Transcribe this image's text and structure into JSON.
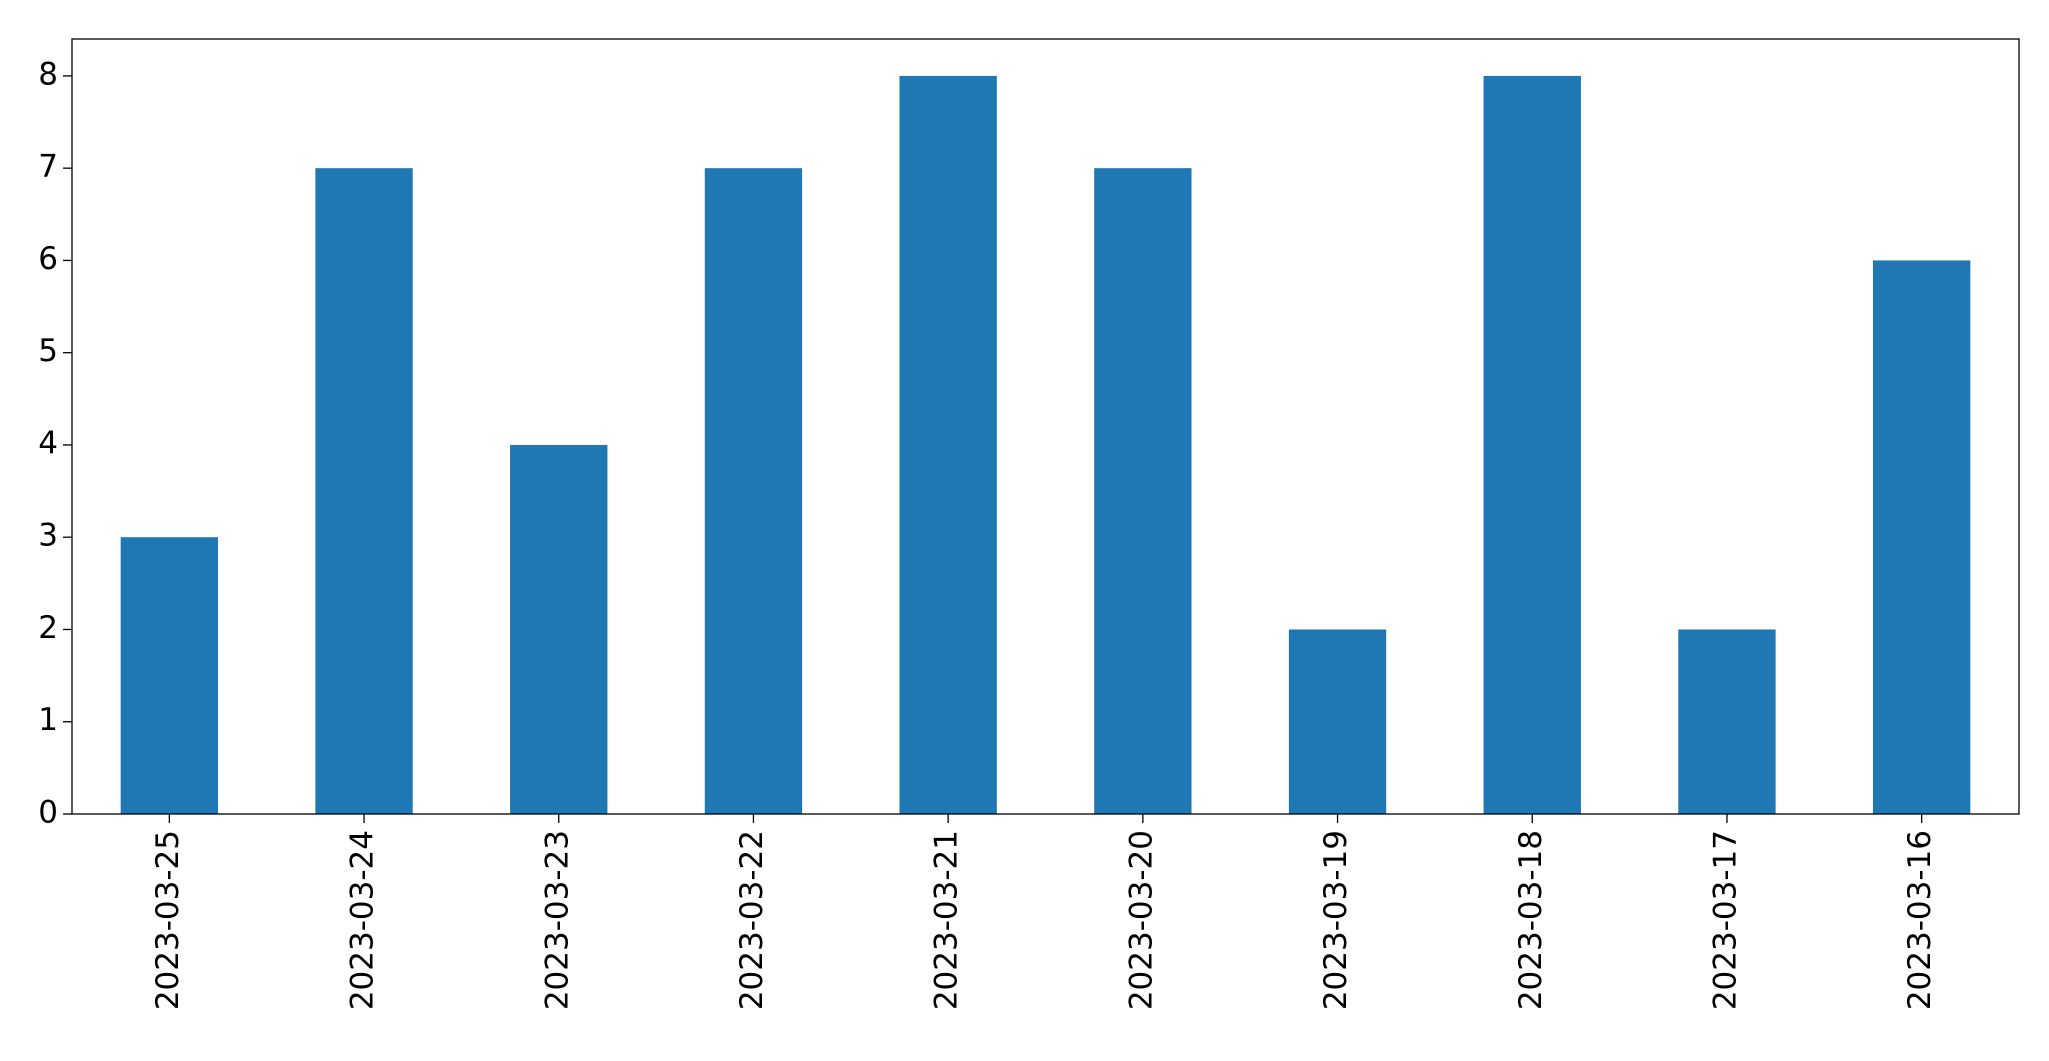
{
  "chart_data": {
    "type": "bar",
    "categories": [
      "2023-03-25",
      "2023-03-24",
      "2023-03-23",
      "2023-03-22",
      "2023-03-21",
      "2023-03-20",
      "2023-03-19",
      "2023-03-18",
      "2023-03-17",
      "2023-03-16"
    ],
    "values": [
      3,
      7,
      4,
      7,
      8,
      7,
      2,
      8,
      2,
      6
    ],
    "color": "#1f77b4",
    "ylim": [
      0,
      8.4
    ],
    "yticks": [
      0,
      1,
      2,
      3,
      4,
      5,
      6,
      7,
      8
    ],
    "grid": false
  }
}
